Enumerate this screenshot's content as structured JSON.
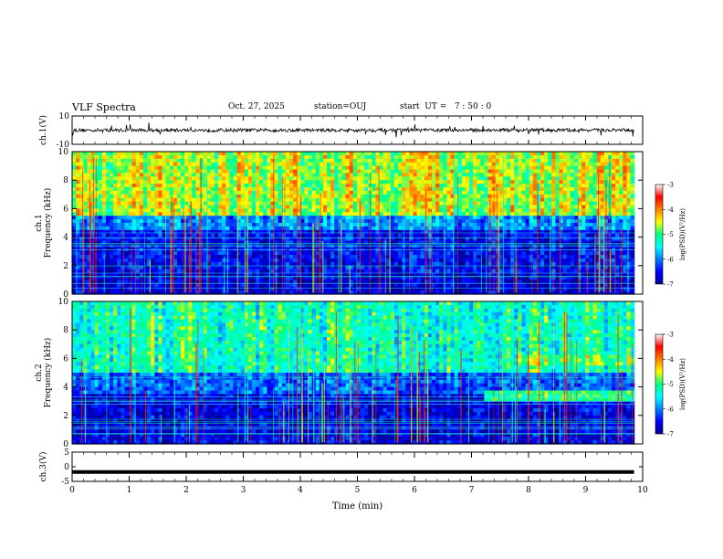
{
  "header": {
    "title": "VLF Spectra",
    "date": "Oct. 27, 2025",
    "station": "station=OUJ",
    "start": "start  UT =   7 : 50 : 0"
  },
  "chart_data": [
    {
      "type": "line",
      "name": "ch1-waveform",
      "ylabel": "ch.1(V)",
      "ylim": [
        -10,
        10
      ],
      "y_tick_labels": [
        "10",
        "-10"
      ],
      "baseline": 0,
      "x_range_min": [
        0,
        9.85
      ]
    },
    {
      "type": "heatmap",
      "name": "ch1-spectrogram",
      "ylabel_line1": "ch.1",
      "ylabel_line2": "Frequency (kHz)",
      "ylim_khz": [
        0,
        10
      ],
      "y_ticks": [
        "0",
        "2",
        "4",
        "6",
        "8",
        "10"
      ],
      "bands_log_psd": [
        {
          "f_lo": 0,
          "f_hi": 1.5,
          "level": -6.7
        },
        {
          "f_lo": 1.5,
          "f_hi": 4.5,
          "level": -6.5
        },
        {
          "f_lo": 4.5,
          "f_hi": 5.5,
          "level": -5.9
        },
        {
          "f_lo": 5.5,
          "f_hi": 10,
          "level": -4.6
        }
      ],
      "colorbar": {
        "label": "log(PSD)(V²/Hz)",
        "range": [
          -7,
          -3
        ],
        "tick_labels": [
          "-3",
          "-4",
          "-5",
          "-6",
          "-7"
        ]
      }
    },
    {
      "type": "heatmap",
      "name": "ch2-spectrogram",
      "ylabel_line1": "ch.2",
      "ylabel_line2": "Frequency (kHz)",
      "ylim_khz": [
        0,
        10
      ],
      "y_ticks": [
        "0",
        "2",
        "4",
        "6",
        "8",
        "10"
      ],
      "bands_log_psd": [
        {
          "f_lo": 0,
          "f_hi": 3.5,
          "level": -6.6
        },
        {
          "f_lo": 3.5,
          "f_hi": 5.0,
          "level": -6.1
        },
        {
          "f_lo": 5.0,
          "f_hi": 10,
          "level": -5.2
        }
      ],
      "features": [
        {
          "desc": "emission band",
          "t_start_min": 7.2,
          "t_end_min": 9.85,
          "f_lo": 3.1,
          "f_hi": 3.8,
          "level": -5.0
        },
        {
          "desc": "raised background",
          "t_start_min": 7.8,
          "t_end_min": 9.85,
          "f_lo": 5.5,
          "f_hi": 6.3,
          "level": -4.8
        }
      ],
      "colorbar": {
        "label": "log(PSD)(V²/Hz)",
        "range": [
          -7,
          -3
        ],
        "tick_labels": [
          "-3",
          "-4",
          "-5",
          "-6",
          "-7"
        ]
      }
    },
    {
      "type": "line",
      "name": "ch3-waveform",
      "ylabel": "ch.3(V)",
      "ylim": [
        -5,
        5
      ],
      "y_tick_labels": [
        "5",
        "0",
        "-5"
      ],
      "level": -1.8
    }
  ],
  "x_axis": {
    "label": "Time (min)",
    "range": [
      0,
      10
    ],
    "ticks": [
      "0",
      "1",
      "2",
      "3",
      "4",
      "5",
      "6",
      "7",
      "8",
      "9",
      "10"
    ],
    "data_end_min": 9.85
  }
}
